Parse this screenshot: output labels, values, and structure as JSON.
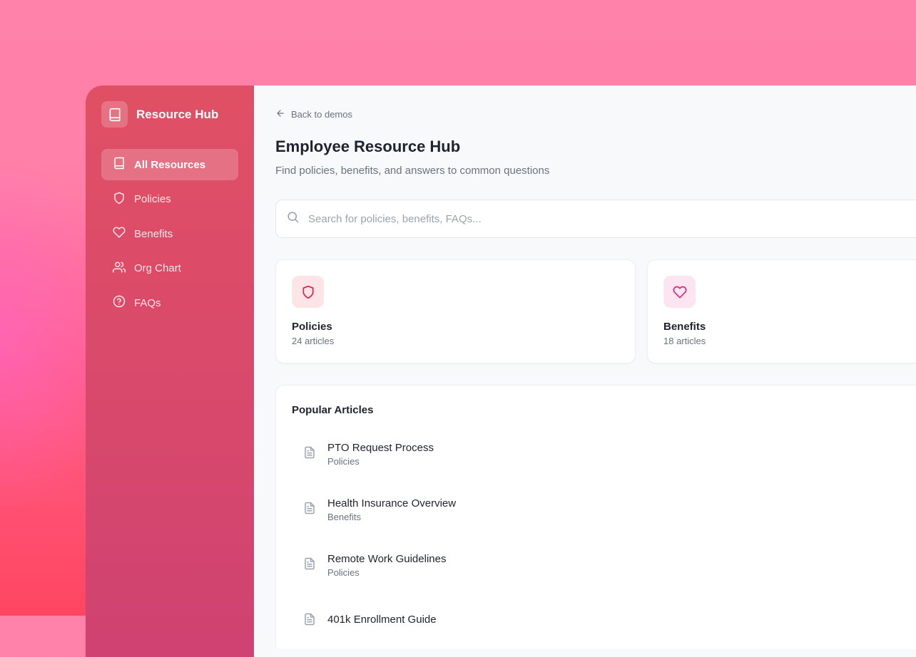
{
  "sidebar": {
    "brand": "Resource Hub",
    "items": [
      {
        "label": "All Resources",
        "icon": "book-icon",
        "active": true
      },
      {
        "label": "Policies",
        "icon": "shield-icon"
      },
      {
        "label": "Benefits",
        "icon": "heart-icon"
      },
      {
        "label": "Org Chart",
        "icon": "users-icon"
      },
      {
        "label": "FAQs",
        "icon": "help-circle-icon"
      }
    ]
  },
  "main": {
    "back": "Back to demos",
    "title": "Employee Resource Hub",
    "subtitle": "Find policies, benefits, and answers to common questions",
    "search_placeholder": "Search for policies, benefits, FAQs...",
    "cards": [
      {
        "title": "Policies",
        "count": "24 articles",
        "icon": "shield-icon",
        "color": "#e11d48",
        "bg": "#fde4e7"
      },
      {
        "title": "Benefits",
        "count": "18 articles",
        "icon": "heart-icon",
        "color": "#db2777",
        "bg": "#fce4f0"
      }
    ],
    "popular": {
      "title": "Popular Articles",
      "articles": [
        {
          "title": "PTO Request Process",
          "category": "Policies"
        },
        {
          "title": "Health Insurance Overview",
          "category": "Benefits"
        },
        {
          "title": "Remote Work Guidelines",
          "category": "Policies"
        },
        {
          "title": "401k Enrollment Guide",
          "category": ""
        }
      ]
    }
  }
}
